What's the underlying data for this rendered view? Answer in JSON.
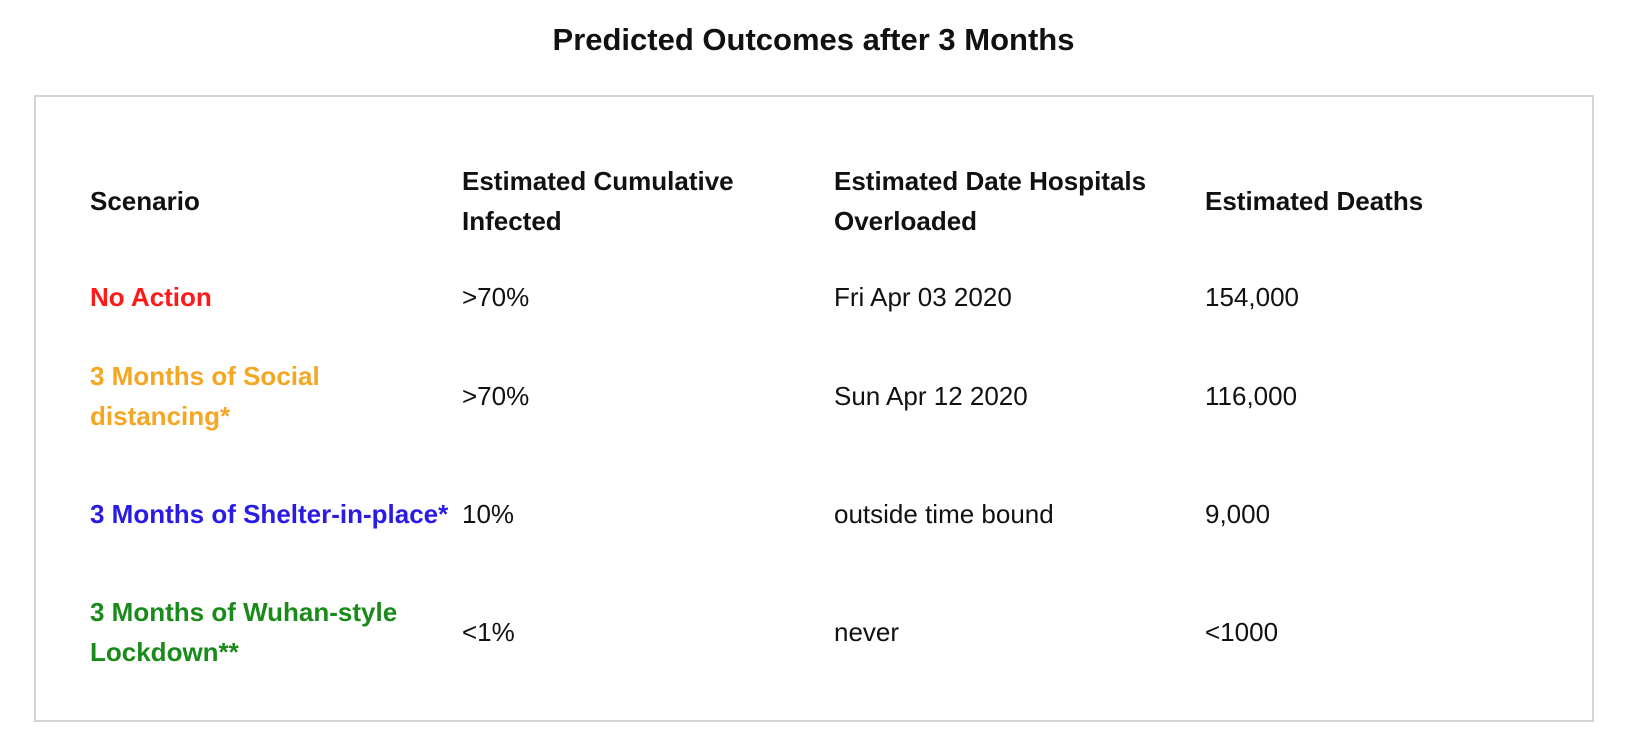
{
  "title": "Predicted Outcomes after 3 Months",
  "colors": {
    "no_action": "#ff1a1a",
    "social_distancing": "#f5a623",
    "shelter_in_place": "#2a1ae6",
    "lockdown": "#1a8a1a"
  },
  "table": {
    "headers": [
      "Scenario",
      "Estimated Cumulative Infected",
      "Estimated Date Hospitals Overloaded",
      "Estimated Deaths"
    ],
    "rows": [
      {
        "scenario": "No Action",
        "infected": ">70%",
        "overloaded": "Fri Apr 03 2020",
        "deaths": "154,000"
      },
      {
        "scenario": "3 Months of Social distancing*",
        "infected": ">70%",
        "overloaded": "Sun Apr 12 2020",
        "deaths": "116,000"
      },
      {
        "scenario": "3 Months of Shelter-in-place*",
        "infected": "10%",
        "overloaded": "outside time bound",
        "deaths": "9,000"
      },
      {
        "scenario": "3 Months of Wuhan-style Lockdown**",
        "infected": "<1%",
        "overloaded": "never",
        "deaths": "<1000"
      }
    ]
  }
}
